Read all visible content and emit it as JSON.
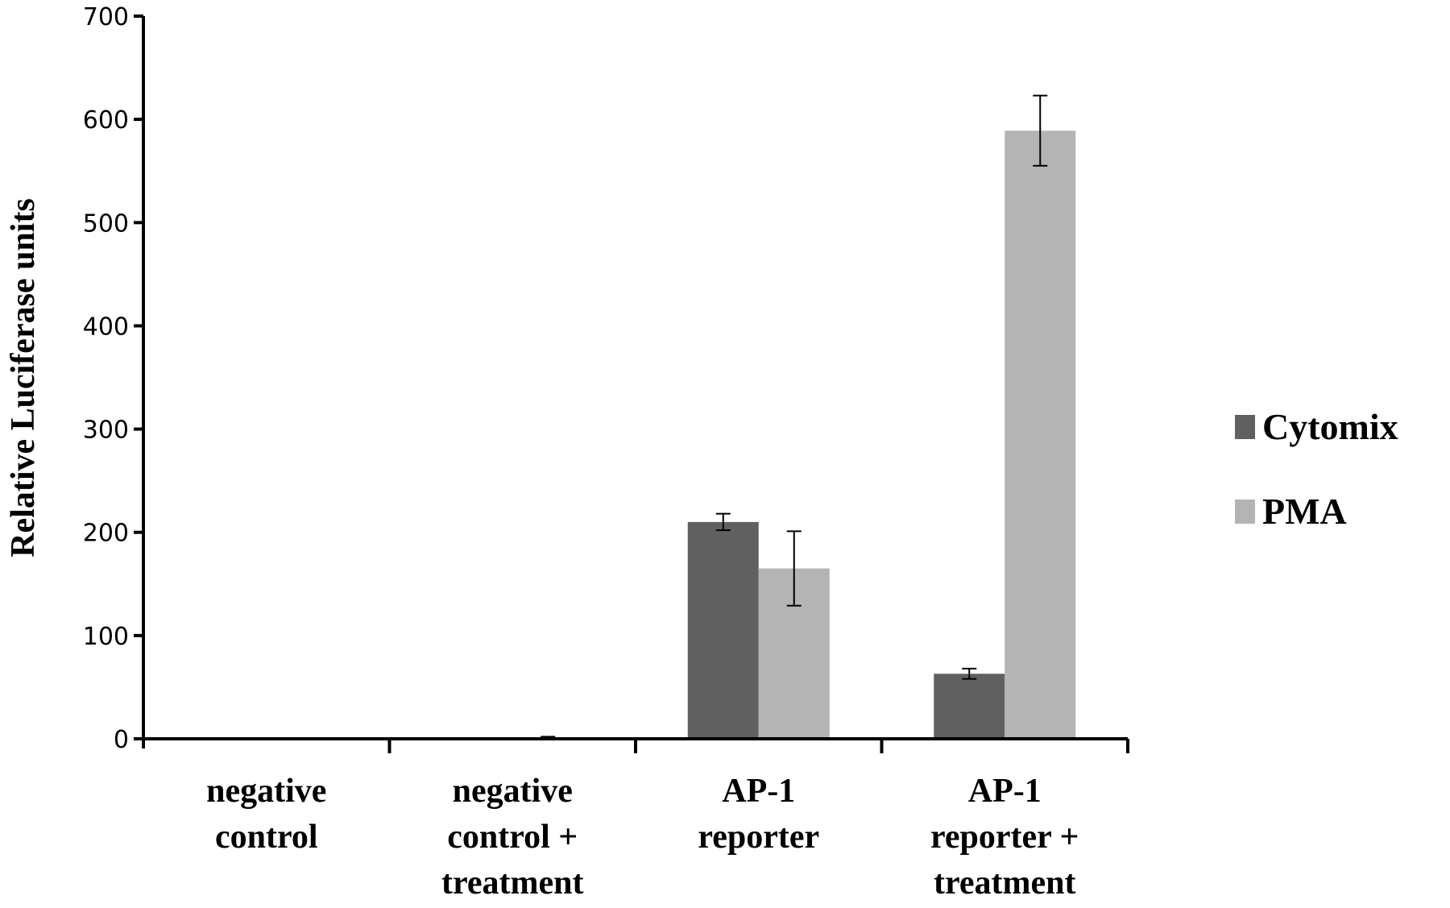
{
  "chart_data": {
    "type": "bar",
    "title": "",
    "xlabel": "",
    "ylabel": "Relative Luciferase units",
    "ylim": [
      0,
      700
    ],
    "yticks": [
      0,
      100,
      200,
      300,
      400,
      500,
      600,
      700
    ],
    "grid": false,
    "legend_position": "right",
    "categories": [
      [
        "negative",
        "control"
      ],
      [
        "negative",
        "control +",
        "treatment"
      ],
      [
        "AP-1",
        "reporter"
      ],
      [
        "AP-1",
        "reporter +",
        "treatment"
      ]
    ],
    "series": [
      {
        "name": "Cytomix",
        "color": "#606060",
        "values": [
          0,
          0,
          210,
          63
        ],
        "errors": [
          0,
          0,
          8,
          5
        ]
      },
      {
        "name": "PMA",
        "color": "#b4b4b4",
        "values": [
          0,
          1,
          165,
          589
        ],
        "errors": [
          0,
          1,
          36,
          34
        ]
      }
    ]
  }
}
